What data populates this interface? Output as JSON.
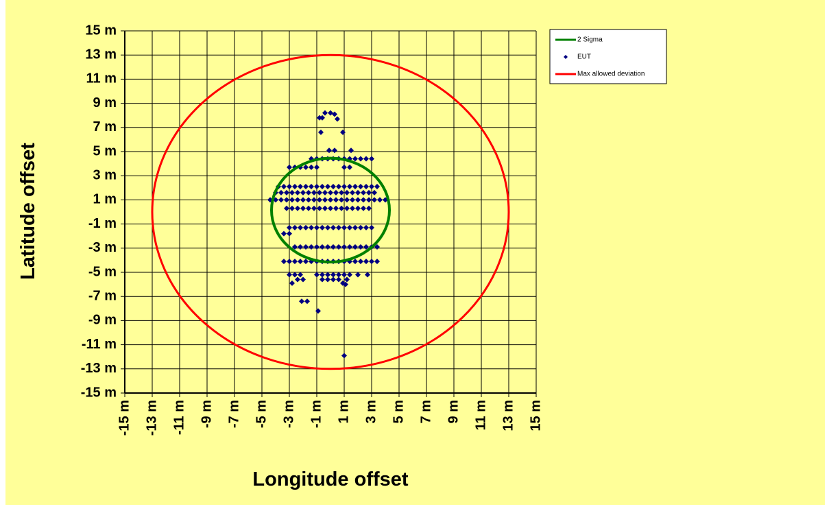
{
  "chart_data": {
    "type": "scatter",
    "xlabel": "Longitude offset",
    "ylabel": "Latitude offset",
    "xlim": [
      -15,
      15
    ],
    "ylim": [
      -15,
      15
    ],
    "xticks": [
      {
        "value": -15,
        "label": "-15 m"
      },
      {
        "value": -13,
        "label": "-13 m"
      },
      {
        "value": -11,
        "label": "-11 m"
      },
      {
        "value": -9,
        "label": "-9 m"
      },
      {
        "value": -7,
        "label": "-7 m"
      },
      {
        "value": -5,
        "label": "-5 m"
      },
      {
        "value": -3,
        "label": "-3 m"
      },
      {
        "value": -1,
        "label": "-1 m"
      },
      {
        "value": 1,
        "label": "1 m"
      },
      {
        "value": 3,
        "label": "3 m"
      },
      {
        "value": 5,
        "label": "5 m"
      },
      {
        "value": 7,
        "label": "7 m"
      },
      {
        "value": 9,
        "label": "9 m"
      },
      {
        "value": 11,
        "label": "11 m"
      },
      {
        "value": 13,
        "label": "13 m"
      },
      {
        "value": 15,
        "label": "15 m"
      }
    ],
    "yticks": [
      {
        "value": 15,
        "label": "15 m"
      },
      {
        "value": 13,
        "label": "13 m"
      },
      {
        "value": 11,
        "label": "11 m"
      },
      {
        "value": 9,
        "label": "9 m"
      },
      {
        "value": 7,
        "label": "7 m"
      },
      {
        "value": 5,
        "label": "5 m"
      },
      {
        "value": 3,
        "label": "3 m"
      },
      {
        "value": 1,
        "label": "1 m"
      },
      {
        "value": -1,
        "label": "-1 m"
      },
      {
        "value": -3,
        "label": "-3 m"
      },
      {
        "value": -5,
        "label": "-5 m"
      },
      {
        "value": -7,
        "label": "-7 m"
      },
      {
        "value": -9,
        "label": "-9 m"
      },
      {
        "value": -11,
        "label": "-11 m"
      },
      {
        "value": -13,
        "label": "-13 m"
      },
      {
        "value": -15,
        "label": "-15 m"
      }
    ],
    "grid": true,
    "legend": "top-right",
    "series": [
      {
        "name": "2 Sigma",
        "kind": "circle",
        "color": "#008000",
        "cx": 0,
        "cy": 0.15,
        "r": 4.3
      },
      {
        "name": "EUT",
        "kind": "points",
        "color": "#000080",
        "points": [
          [
            -0.4,
            8.2
          ],
          [
            0.0,
            8.2
          ],
          [
            0.3,
            8.1
          ],
          [
            -0.8,
            7.8
          ],
          [
            -0.6,
            7.8
          ],
          [
            0.5,
            7.7
          ],
          [
            -0.7,
            6.6
          ],
          [
            0.9,
            6.6
          ],
          [
            -0.1,
            5.1
          ],
          [
            0.3,
            5.1
          ],
          [
            1.5,
            5.1
          ],
          [
            -1.4,
            4.4
          ],
          [
            -1.0,
            4.4
          ],
          [
            -0.6,
            4.4
          ],
          [
            -0.2,
            4.4
          ],
          [
            0.2,
            4.4
          ],
          [
            0.6,
            4.4
          ],
          [
            1.0,
            4.4
          ],
          [
            1.4,
            4.4
          ],
          [
            1.8,
            4.4
          ],
          [
            2.2,
            4.4
          ],
          [
            2.6,
            4.4
          ],
          [
            3.0,
            4.4
          ],
          [
            -3.0,
            3.7
          ],
          [
            -2.6,
            3.7
          ],
          [
            -2.2,
            3.7
          ],
          [
            -1.8,
            3.7
          ],
          [
            -1.4,
            3.7
          ],
          [
            -1.0,
            3.7
          ],
          [
            1.0,
            3.7
          ],
          [
            1.4,
            3.7
          ],
          [
            -3.8,
            2.1
          ],
          [
            -3.4,
            2.1
          ],
          [
            -3.0,
            2.1
          ],
          [
            -2.6,
            2.1
          ],
          [
            -2.2,
            2.1
          ],
          [
            -1.8,
            2.1
          ],
          [
            -1.4,
            2.1
          ],
          [
            -1.0,
            2.1
          ],
          [
            -0.6,
            2.1
          ],
          [
            -0.2,
            2.1
          ],
          [
            0.2,
            2.1
          ],
          [
            0.6,
            2.1
          ],
          [
            1.0,
            2.1
          ],
          [
            1.4,
            2.1
          ],
          [
            1.8,
            2.1
          ],
          [
            2.2,
            2.1
          ],
          [
            2.6,
            2.1
          ],
          [
            3.0,
            2.1
          ],
          [
            3.4,
            2.1
          ],
          [
            -4.0,
            1.6
          ],
          [
            -3.6,
            1.6
          ],
          [
            -3.2,
            1.6
          ],
          [
            -2.8,
            1.6
          ],
          [
            -2.4,
            1.6
          ],
          [
            -2.0,
            1.6
          ],
          [
            -1.6,
            1.6
          ],
          [
            -1.2,
            1.6
          ],
          [
            -0.8,
            1.6
          ],
          [
            -0.4,
            1.6
          ],
          [
            0.0,
            1.6
          ],
          [
            0.4,
            1.6
          ],
          [
            0.8,
            1.6
          ],
          [
            1.2,
            1.6
          ],
          [
            1.6,
            1.6
          ],
          [
            2.0,
            1.6
          ],
          [
            2.4,
            1.6
          ],
          [
            2.8,
            1.6
          ],
          [
            3.2,
            1.6
          ],
          [
            -4.4,
            1.0
          ],
          [
            -4.0,
            1.0
          ],
          [
            -3.6,
            1.0
          ],
          [
            -3.2,
            1.0
          ],
          [
            -2.8,
            1.0
          ],
          [
            -2.4,
            1.0
          ],
          [
            -2.0,
            1.0
          ],
          [
            -1.6,
            1.0
          ],
          [
            -1.2,
            1.0
          ],
          [
            -0.8,
            1.0
          ],
          [
            -0.4,
            1.0
          ],
          [
            0.0,
            1.0
          ],
          [
            0.4,
            1.0
          ],
          [
            0.8,
            1.0
          ],
          [
            1.2,
            1.0
          ],
          [
            1.6,
            1.0
          ],
          [
            2.0,
            1.0
          ],
          [
            2.4,
            1.0
          ],
          [
            2.8,
            1.0
          ],
          [
            3.2,
            1.0
          ],
          [
            3.6,
            1.0
          ],
          [
            4.0,
            1.0
          ],
          [
            -3.2,
            0.3
          ],
          [
            -2.8,
            0.3
          ],
          [
            -2.4,
            0.3
          ],
          [
            -2.0,
            0.3
          ],
          [
            -1.6,
            0.3
          ],
          [
            -1.2,
            0.3
          ],
          [
            -0.8,
            0.3
          ],
          [
            -0.4,
            0.3
          ],
          [
            0.0,
            0.3
          ],
          [
            0.4,
            0.3
          ],
          [
            0.8,
            0.3
          ],
          [
            1.2,
            0.3
          ],
          [
            1.6,
            0.3
          ],
          [
            2.0,
            0.3
          ],
          [
            2.4,
            0.3
          ],
          [
            2.8,
            0.3
          ],
          [
            -3.0,
            -1.3
          ],
          [
            -2.6,
            -1.3
          ],
          [
            -2.2,
            -1.3
          ],
          [
            -1.8,
            -1.3
          ],
          [
            -1.4,
            -1.3
          ],
          [
            -1.0,
            -1.3
          ],
          [
            -0.6,
            -1.3
          ],
          [
            -0.2,
            -1.3
          ],
          [
            0.2,
            -1.3
          ],
          [
            0.6,
            -1.3
          ],
          [
            1.0,
            -1.3
          ],
          [
            1.4,
            -1.3
          ],
          [
            1.8,
            -1.3
          ],
          [
            2.2,
            -1.3
          ],
          [
            2.6,
            -1.3
          ],
          [
            3.0,
            -1.3
          ],
          [
            -3.4,
            -1.8
          ],
          [
            -3.0,
            -1.8
          ],
          [
            -2.6,
            -2.9
          ],
          [
            -2.2,
            -2.9
          ],
          [
            -1.8,
            -2.9
          ],
          [
            -1.4,
            -2.9
          ],
          [
            -1.0,
            -2.9
          ],
          [
            -0.6,
            -2.9
          ],
          [
            -0.2,
            -2.9
          ],
          [
            0.2,
            -2.9
          ],
          [
            0.6,
            -2.9
          ],
          [
            1.0,
            -2.9
          ],
          [
            1.4,
            -2.9
          ],
          [
            1.8,
            -2.9
          ],
          [
            2.2,
            -2.9
          ],
          [
            2.6,
            -2.9
          ],
          [
            3.0,
            -2.9
          ],
          [
            3.4,
            -2.9
          ],
          [
            -3.4,
            -4.1
          ],
          [
            -3.0,
            -4.1
          ],
          [
            -2.6,
            -4.1
          ],
          [
            -2.2,
            -4.1
          ],
          [
            -1.8,
            -4.1
          ],
          [
            -1.4,
            -4.1
          ],
          [
            -1.0,
            -4.1
          ],
          [
            -0.6,
            -4.1
          ],
          [
            -0.2,
            -4.1
          ],
          [
            0.2,
            -4.1
          ],
          [
            0.6,
            -4.1
          ],
          [
            1.0,
            -4.1
          ],
          [
            1.4,
            -4.1
          ],
          [
            1.8,
            -4.1
          ],
          [
            2.2,
            -4.1
          ],
          [
            2.6,
            -4.1
          ],
          [
            3.0,
            -4.1
          ],
          [
            3.4,
            -4.1
          ],
          [
            -3.0,
            -5.2
          ],
          [
            -2.6,
            -5.2
          ],
          [
            -2.2,
            -5.2
          ],
          [
            -1.0,
            -5.2
          ],
          [
            -0.6,
            -5.2
          ],
          [
            -0.2,
            -5.2
          ],
          [
            0.2,
            -5.2
          ],
          [
            0.6,
            -5.2
          ],
          [
            1.0,
            -5.2
          ],
          [
            1.4,
            -5.2
          ],
          [
            2.0,
            -5.2
          ],
          [
            2.7,
            -5.2
          ],
          [
            -2.4,
            -5.6
          ],
          [
            -2.0,
            -5.6
          ],
          [
            -0.6,
            -5.6
          ],
          [
            -0.2,
            -5.6
          ],
          [
            0.2,
            -5.6
          ],
          [
            0.6,
            -5.6
          ],
          [
            1.2,
            -5.6
          ],
          [
            -2.8,
            -5.9
          ],
          [
            0.9,
            -5.9
          ],
          [
            1.1,
            -6.0
          ],
          [
            -2.1,
            -7.4
          ],
          [
            -1.7,
            -7.4
          ],
          [
            -0.9,
            -8.2
          ],
          [
            1.0,
            -11.9
          ]
        ]
      },
      {
        "name": "Max allowed deviation",
        "kind": "circle",
        "color": "#FF0000",
        "cx": 0,
        "cy": 0,
        "r": 13
      }
    ]
  }
}
